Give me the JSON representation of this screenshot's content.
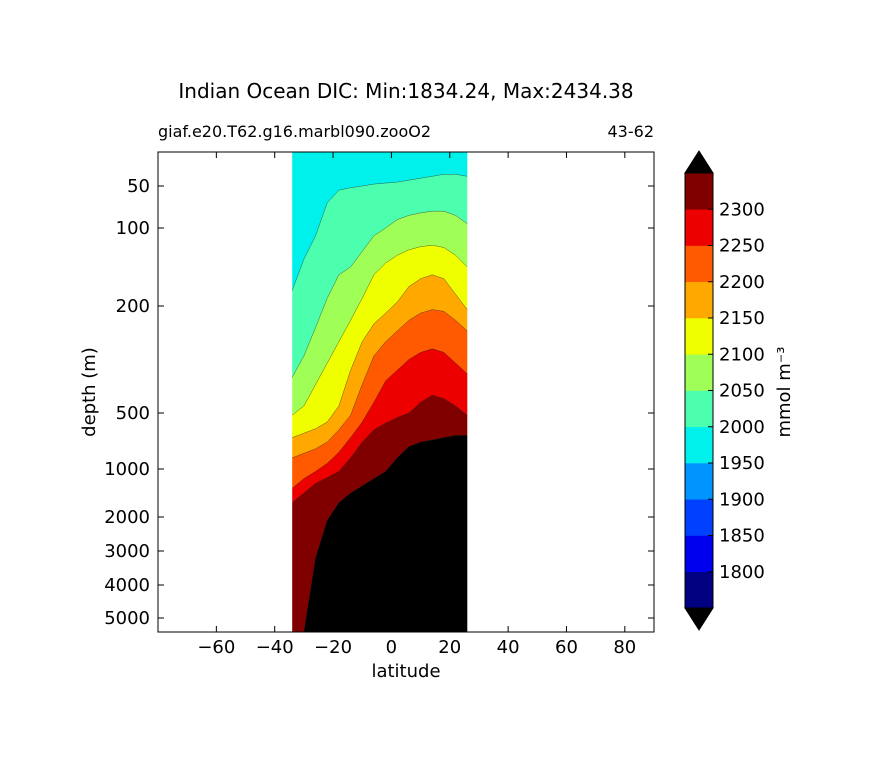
{
  "chart_data": {
    "type": "heatmap",
    "title": "Indian Ocean DIC: Min:1834.24, Max:2434.38",
    "subtitle_left": "giaf.e20.T62.g16.marbl090.zooO2",
    "subtitle_right": "43-62",
    "xlabel": "latitude",
    "ylabel": "depth (m)",
    "xlim": [
      -80,
      90
    ],
    "ylim": [
      5500,
      15
    ],
    "yscale": "log-like",
    "x_ticks": [
      -60,
      -40,
      -20,
      0,
      20,
      40,
      60,
      80
    ],
    "x_tick_labels": [
      "−60",
      "−40",
      "−20",
      "0",
      "20",
      "40",
      "60",
      "80"
    ],
    "y_ticks": [
      50,
      100,
      200,
      500,
      1000,
      2000,
      3000,
      4000,
      5000
    ],
    "y_tick_labels": [
      "50",
      "100",
      "200",
      "500",
      "1000",
      "2000",
      "3000",
      "4000",
      "5000"
    ],
    "data_extent_lat": [
      -34,
      26
    ],
    "colorbar": {
      "label": "mmol m⁻³",
      "levels": [
        1750,
        1800,
        1850,
        1900,
        1950,
        2000,
        2050,
        2100,
        2150,
        2200,
        2250,
        2300,
        2350
      ],
      "tick_labels": [
        "1800",
        "1850",
        "1900",
        "1950",
        "2000",
        "2050",
        "2100",
        "2150",
        "2200",
        "2250",
        "2300"
      ],
      "colors": [
        "#000080",
        "#0000ee",
        "#0040ff",
        "#0094ff",
        "#00f0ec",
        "#4bffae",
        "#a0ff57",
        "#f0ff00",
        "#ffa800",
        "#ff5a00",
        "#ec0000",
        "#800000"
      ],
      "extend_min_color": "#000000",
      "extend_max_color": "#000000",
      "over_color": "#000000"
    },
    "contours_lat": [
      -34,
      -30,
      -26,
      -22,
      -18,
      -14,
      -10,
      -6,
      -2,
      2,
      6,
      10,
      14,
      18,
      22,
      26
    ],
    "contours_depth": [
      {
        "level": 1950,
        "depths": [
          15,
          15,
          15,
          15,
          15,
          15,
          15,
          15,
          15,
          15,
          15,
          15,
          15,
          15,
          15,
          15
        ]
      },
      {
        "level": 2000,
        "depths": [
          180,
          140,
          110,
          70,
          55,
          52,
          50,
          48,
          47,
          46,
          44,
          42,
          40,
          38,
          38,
          40
        ]
      },
      {
        "level": 2050,
        "depths": [
          400,
          340,
          260,
          190,
          160,
          150,
          130,
          110,
          100,
          90,
          85,
          82,
          80,
          80,
          85,
          95
        ]
      },
      {
        "level": 2100,
        "depths": [
          520,
          480,
          420,
          360,
          300,
          240,
          190,
          160,
          145,
          135,
          128,
          124,
          122,
          125,
          135,
          150
        ]
      },
      {
        "level": 2150,
        "depths": [
          720,
          680,
          640,
          580,
          480,
          380,
          300,
          250,
          220,
          195,
          175,
          165,
          160,
          165,
          185,
          210
        ]
      },
      {
        "level": 2200,
        "depths": [
          900,
          860,
          820,
          760,
          650,
          520,
          420,
          340,
          300,
          270,
          240,
          220,
          210,
          215,
          240,
          270
        ]
      },
      {
        "level": 2250,
        "depths": [
          1400,
          1200,
          1050,
          950,
          850,
          720,
          580,
          470,
          410,
          380,
          350,
          330,
          320,
          330,
          360,
          390
        ]
      },
      {
        "level": 2300,
        "depths": [
          1700,
          1500,
          1300,
          1180,
          1050,
          900,
          760,
          650,
          590,
          540,
          500,
          470,
          450,
          460,
          480,
          520
        ]
      },
      {
        "level": 2350,
        "depths": [
          5500,
          5500,
          3200,
          2100,
          1700,
          1500,
          1350,
          1200,
          1050,
          900,
          800,
          760,
          740,
          720,
          700,
          700
        ]
      }
    ]
  }
}
